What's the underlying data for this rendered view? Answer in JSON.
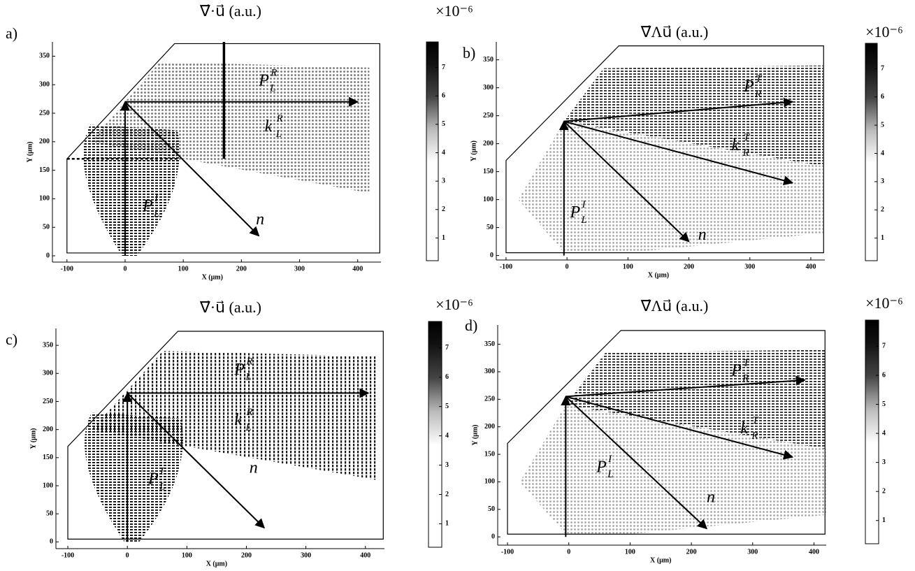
{
  "panels": [
    {
      "label": "a)",
      "title": "∇⃗·u⃗  (a.u.)",
      "xlabel": "X (μm)",
      "ylabel": "Y (μm)",
      "xlim": [
        -125,
        440
      ],
      "ylim": [
        -11,
        375
      ],
      "xticks": [
        -100,
        0,
        100,
        200,
        300,
        400
      ],
      "yticks": [
        0,
        50,
        100,
        150,
        200,
        250,
        300,
        350
      ],
      "colorbar": {
        "multiplier": "×10⁻⁶",
        "lim": [
          0.2,
          7.9
        ],
        "ticks": [
          1,
          2,
          3,
          4,
          5,
          6,
          7
        ]
      },
      "annotations": [
        {
          "base": "P⃗",
          "sub": "L",
          "sup": "R"
        },
        {
          "base": "k⃗",
          "sub": "L",
          "sup": "R"
        },
        {
          "base": "P⃗",
          "sub": "L",
          "sup": "I"
        },
        {
          "base": "n⃗"
        }
      ]
    },
    {
      "label": "b)",
      "title": "∇⃗Λu⃗  (a.u.)",
      "xlabel": "X (μm)",
      "ylabel": "Y (μm)",
      "xlim": [
        -116,
        423
      ],
      "ylim": [
        -8,
        382
      ],
      "xticks": [
        -100,
        0,
        100,
        200,
        300,
        400
      ],
      "yticks": [
        0,
        50,
        100,
        150,
        200,
        250,
        300,
        350
      ],
      "colorbar": {
        "multiplier": "×10⁻⁶",
        "lim": [
          0.2,
          7.9
        ],
        "ticks": [
          1,
          2,
          3,
          4,
          5,
          6,
          7
        ]
      },
      "annotations": [
        {
          "base": "P⃗",
          "sub": "R",
          "sup": "T"
        },
        {
          "base": "k⃗",
          "sub": "R",
          "sup": "T"
        },
        {
          "base": "P⃗",
          "sub": "L",
          "sup": "I"
        },
        {
          "base": "n⃗"
        }
      ]
    },
    {
      "label": "c)",
      "title": "∇⃗·u⃗  (a.u.)",
      "xlabel": "X (μm)",
      "ylabel": "Y (μm)",
      "xlim": [
        -120,
        432
      ],
      "ylim": [
        -12,
        380
      ],
      "xticks": [
        -100,
        0,
        100,
        200,
        300,
        400
      ],
      "yticks": [
        0,
        50,
        100,
        150,
        200,
        250,
        300,
        350
      ],
      "colorbar": {
        "multiplier": "×10⁻⁶",
        "lim": [
          0.2,
          7.9
        ],
        "ticks": [
          1,
          2,
          3,
          4,
          5,
          6,
          7
        ]
      },
      "annotations": [
        {
          "base": "P⃗",
          "sub": "L",
          "sup": "R"
        },
        {
          "base": "k⃗",
          "sub": "L",
          "sup": "R"
        },
        {
          "base": "P⃗",
          "sub": "L",
          "sup": "I"
        },
        {
          "base": "n⃗"
        }
      ]
    },
    {
      "label": "d)",
      "title": "∇⃗Λu⃗  (a.u.)",
      "xlabel": "X (μm)",
      "ylabel": "Y (μm)",
      "xlim": [
        -116,
        420
      ],
      "ylim": [
        -15,
        385
      ],
      "xticks": [
        -100,
        0,
        100,
        200,
        300,
        400
      ],
      "yticks": [
        0,
        50,
        100,
        150,
        200,
        250,
        300,
        350
      ],
      "colorbar": {
        "multiplier": "×10⁻⁶",
        "lim": [
          0.2,
          7.9
        ],
        "ticks": [
          1,
          2,
          3,
          4,
          5,
          6,
          7
        ]
      },
      "annotations": [
        {
          "base": "P⃗",
          "sub": "R",
          "sup": "T"
        },
        {
          "base": "k⃗",
          "sub": "R",
          "sup": "T"
        },
        {
          "base": "P⃗",
          "sub": "L",
          "sup": "I"
        },
        {
          "base": "n⃗"
        }
      ]
    }
  ]
}
